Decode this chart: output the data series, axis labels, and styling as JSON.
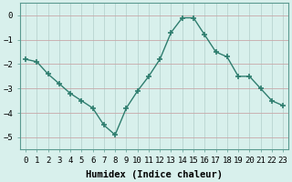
{
  "x": [
    0,
    1,
    2,
    3,
    4,
    5,
    6,
    7,
    8,
    9,
    10,
    11,
    12,
    13,
    14,
    15,
    16,
    17,
    18,
    19,
    20,
    21,
    22,
    23
  ],
  "y": [
    -1.8,
    -1.9,
    -2.4,
    -2.8,
    -3.2,
    -3.5,
    -3.8,
    -4.5,
    -4.9,
    -3.8,
    -3.1,
    -2.5,
    -1.8,
    -0.7,
    -0.1,
    -0.1,
    -0.8,
    -1.5,
    -1.7,
    -2.5,
    -2.5,
    -3.0,
    -3.5,
    -3.7
  ],
  "line_color": "#2e7d6e",
  "marker": "+",
  "marker_size": 5,
  "bg_color": "#d8f0ec",
  "grid_color_h": "#c8a8a8",
  "grid_color_v": "#b8d4d0",
  "xlabel": "Humidex (Indice chaleur)",
  "ylim": [
    -5.5,
    0.5
  ],
  "xlim": [
    -0.5,
    23.5
  ],
  "yticks": [
    0,
    -1,
    -2,
    -3,
    -4,
    -5
  ],
  "xtick_labels": [
    "0",
    "1",
    "2",
    "3",
    "4",
    "5",
    "6",
    "7",
    "8",
    "9",
    "10",
    "11",
    "12",
    "13",
    "14",
    "15",
    "16",
    "17",
    "18",
    "19",
    "20",
    "21",
    "22",
    "23"
  ],
  "label_fontsize": 7.5,
  "tick_fontsize": 6.5
}
